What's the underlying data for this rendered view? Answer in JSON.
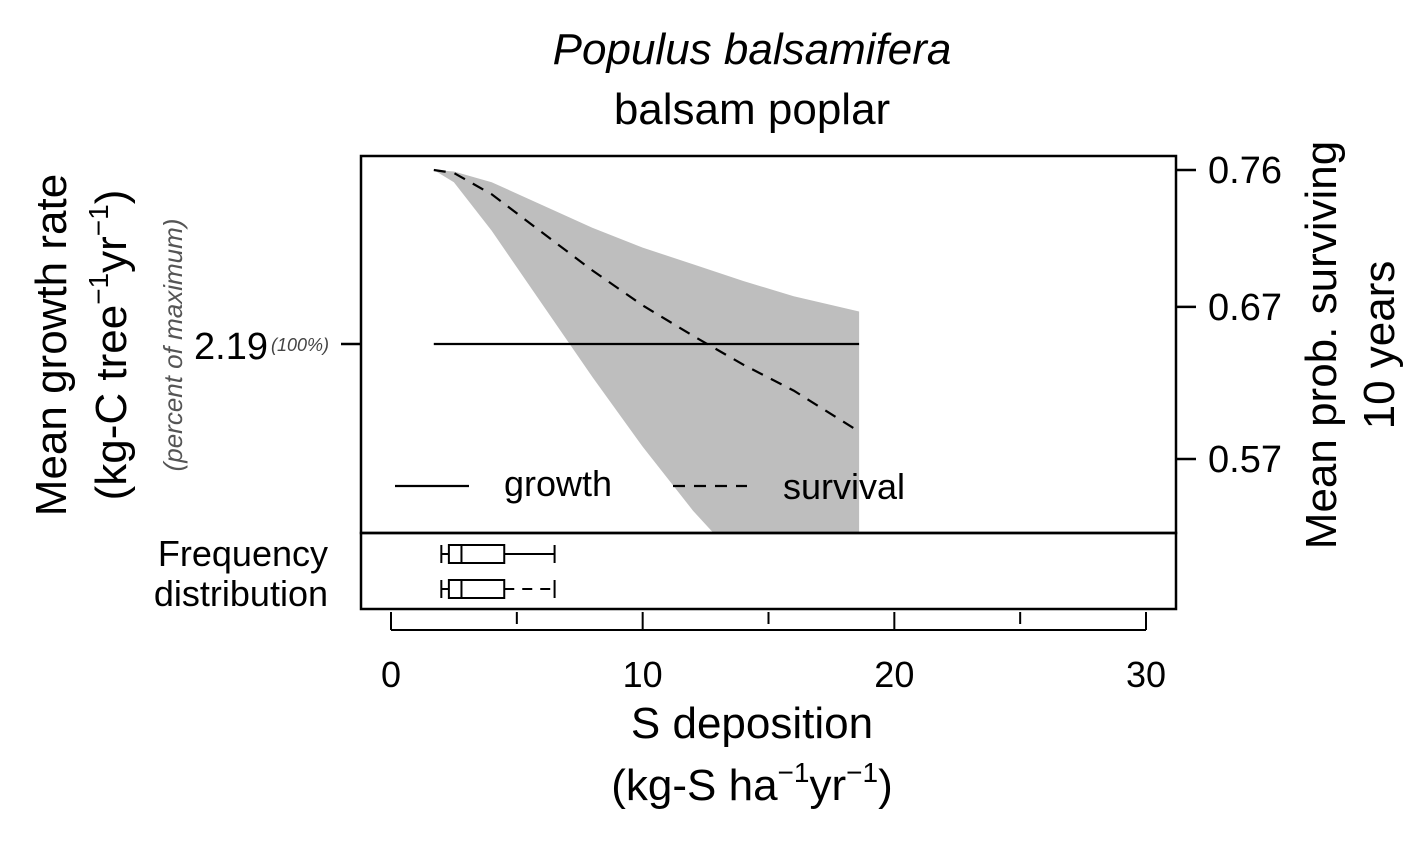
{
  "chart_data": {
    "type": "line",
    "title": "Populus balsamifera",
    "subtitle": "balsam poplar",
    "xlabel": "S deposition",
    "xlabel_units": "(kg-S ha",
    "xlabel_sup1": "−1",
    "xlabel_mid": "yr",
    "xlabel_sup2": "−1",
    "xlabel_close": ")",
    "xlim": [
      -1.2,
      31.2
    ],
    "x_ticks": [
      0,
      10,
      20,
      30
    ],
    "x_minor_ticks": [
      5,
      15,
      25
    ],
    "x_tick_labels": [
      "0",
      "10",
      "20",
      "30"
    ],
    "ylabel_left_line1": "Mean growth rate",
    "ylabel_left_units_a": "(kg-C tree",
    "ylabel_left_sup1": "−1",
    "ylabel_left_units_b": "yr",
    "ylabel_left_sup2": "−1",
    "ylabel_left_close": ")",
    "ylabel_left_note": "(percent of maximum)",
    "left_tick_value": "2.19",
    "left_tick_pct": "(100%)",
    "ylabel_right_line1": "Mean prob. surviving",
    "ylabel_right_line2": "10 years",
    "right_ylim": [
      0.517,
      0.77
    ],
    "right_ticks": [
      0.76,
      0.67,
      0.57
    ],
    "right_tick_labels": [
      "0.76",
      "0.67",
      "0.57"
    ],
    "legend": {
      "position": "bottom-left",
      "growth": "growth",
      "survival": "survival"
    },
    "series": [
      {
        "name": "growth",
        "style": "solid",
        "x": [
          1.7,
          18.6
        ],
        "y": [
          2.19,
          2.19
        ]
      },
      {
        "name": "survival",
        "style": "dashed",
        "axis": "right",
        "x": [
          1.7,
          2.5,
          4,
          6,
          8,
          10,
          12,
          14,
          16,
          18.6
        ],
        "y": [
          0.76,
          0.758,
          0.744,
          0.719,
          0.694,
          0.671,
          0.651,
          0.632,
          0.615,
          0.588
        ],
        "ci_lower": [
          0.76,
          0.752,
          0.72,
          0.672,
          0.624,
          0.578,
          0.536,
          0.5,
          0.47,
          0.44
        ],
        "ci_upper": [
          0.76,
          0.759,
          0.752,
          0.737,
          0.722,
          0.709,
          0.698,
          0.687,
          0.677,
          0.667
        ]
      }
    ],
    "band_color": "#bebebe",
    "frequency_label_1": "Frequency",
    "frequency_label_2": "distribution",
    "frequency_boxes": [
      {
        "series": "growth",
        "min": 2.0,
        "q1": 2.3,
        "median": 2.8,
        "q3": 4.5,
        "max": 6.5
      },
      {
        "series": "survival",
        "min": 2.0,
        "q1": 2.3,
        "median": 2.8,
        "q3": 4.5,
        "max": 6.5
      }
    ]
  }
}
